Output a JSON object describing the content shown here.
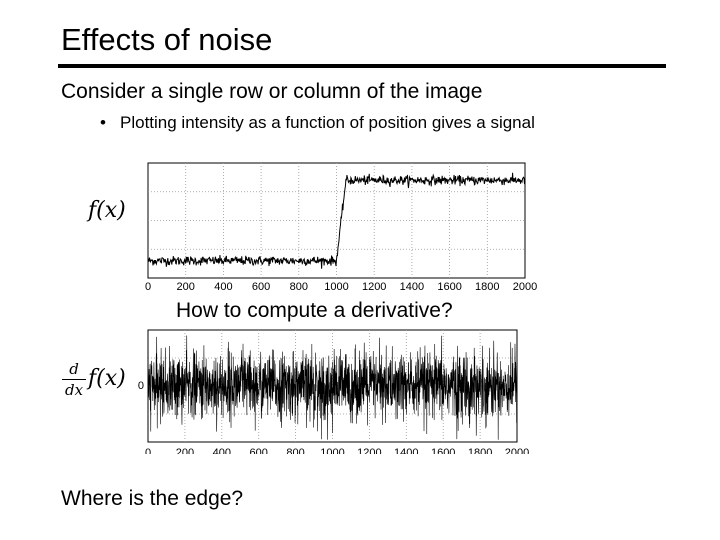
{
  "slide": {
    "title": "Effects of noise",
    "subtitle": "Consider a single row or column of the image",
    "bullet": "Plotting intensity as a function of position gives a signal",
    "question": "How to compute a derivative?",
    "closing": "Where is the edge?",
    "label_f": "f(x)",
    "label_d_num": "d",
    "label_d_den": "dx",
    "label_d_f": "f(x)"
  },
  "chart_data": [
    {
      "type": "line",
      "x_range": [
        0,
        2000
      ],
      "xticks": [
        "0",
        "200",
        "400",
        "600",
        "800",
        "1000",
        "1200",
        "1400",
        "1600",
        "1800",
        "2000"
      ],
      "grid": true,
      "signal": "noisy step edge: low plateau below x≈1000, high plateau above x≈1050",
      "levels": {
        "low": 0.15,
        "high": 0.85
      },
      "edge": [
        1000,
        1050
      ],
      "noise": 0.02
    },
    {
      "type": "line",
      "x_range": [
        0,
        2000
      ],
      "xticks": [
        "0",
        "200",
        "400",
        "600",
        "800",
        "1000",
        "1200",
        "1400",
        "1600",
        "1800",
        "2000"
      ],
      "yticks": [
        "0"
      ],
      "grid": true,
      "signal": "derivative of noisy signal: dense noise around 0, edge not visible"
    }
  ]
}
